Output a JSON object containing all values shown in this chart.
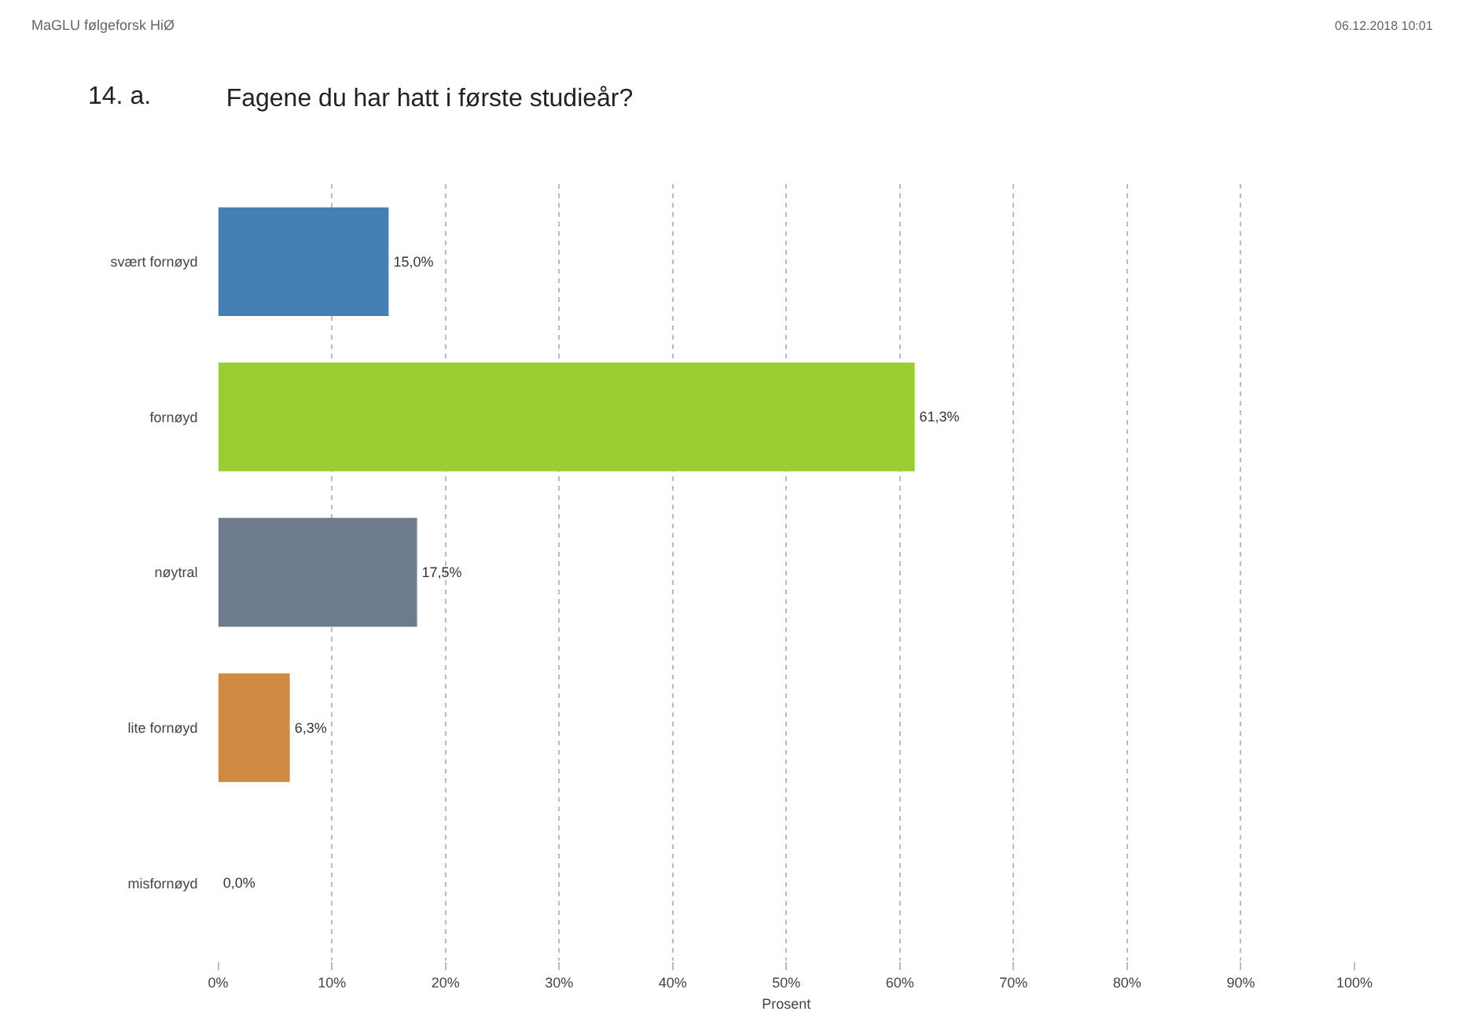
{
  "chart_data": {
    "type": "bar",
    "orientation": "horizontal",
    "title": "Fagene du har hatt i første studieår?",
    "xlabel": "Prosent",
    "annotations": [
      "MaGLU følgeforsk HiØ",
      "06.12.2018 10:01",
      "14. a."
    ],
    "categories": [
      "svært fornøyd",
      "fornøyd",
      "nøytral",
      "lite fornøyd",
      "misfornøyd"
    ],
    "values": [
      15.0,
      61.3,
      17.5,
      6.3,
      0.0
    ],
    "colors": [
      "#4580b4",
      "#9acd32",
      "#6d7b8d",
      "#d08a42",
      "#999999"
    ],
    "value_labels": [
      "15,0%",
      "61,3%",
      "17,5%",
      "6,3%",
      "0,0%"
    ],
    "xlim": [
      0,
      100
    ],
    "xticks": [
      {
        "value": 0,
        "label": "0%"
      },
      {
        "value": 10,
        "label": "10%"
      },
      {
        "value": 20,
        "label": "20%"
      },
      {
        "value": 30,
        "label": "30%"
      },
      {
        "value": 40,
        "label": "40%"
      },
      {
        "value": 50,
        "label": "50%"
      },
      {
        "value": 60,
        "label": "60%"
      },
      {
        "value": 70,
        "label": "70%"
      },
      {
        "value": 80,
        "label": "80%"
      },
      {
        "value": 90,
        "label": "90%"
      },
      {
        "value": 100,
        "label": "100%"
      }
    ],
    "grid": "x"
  }
}
